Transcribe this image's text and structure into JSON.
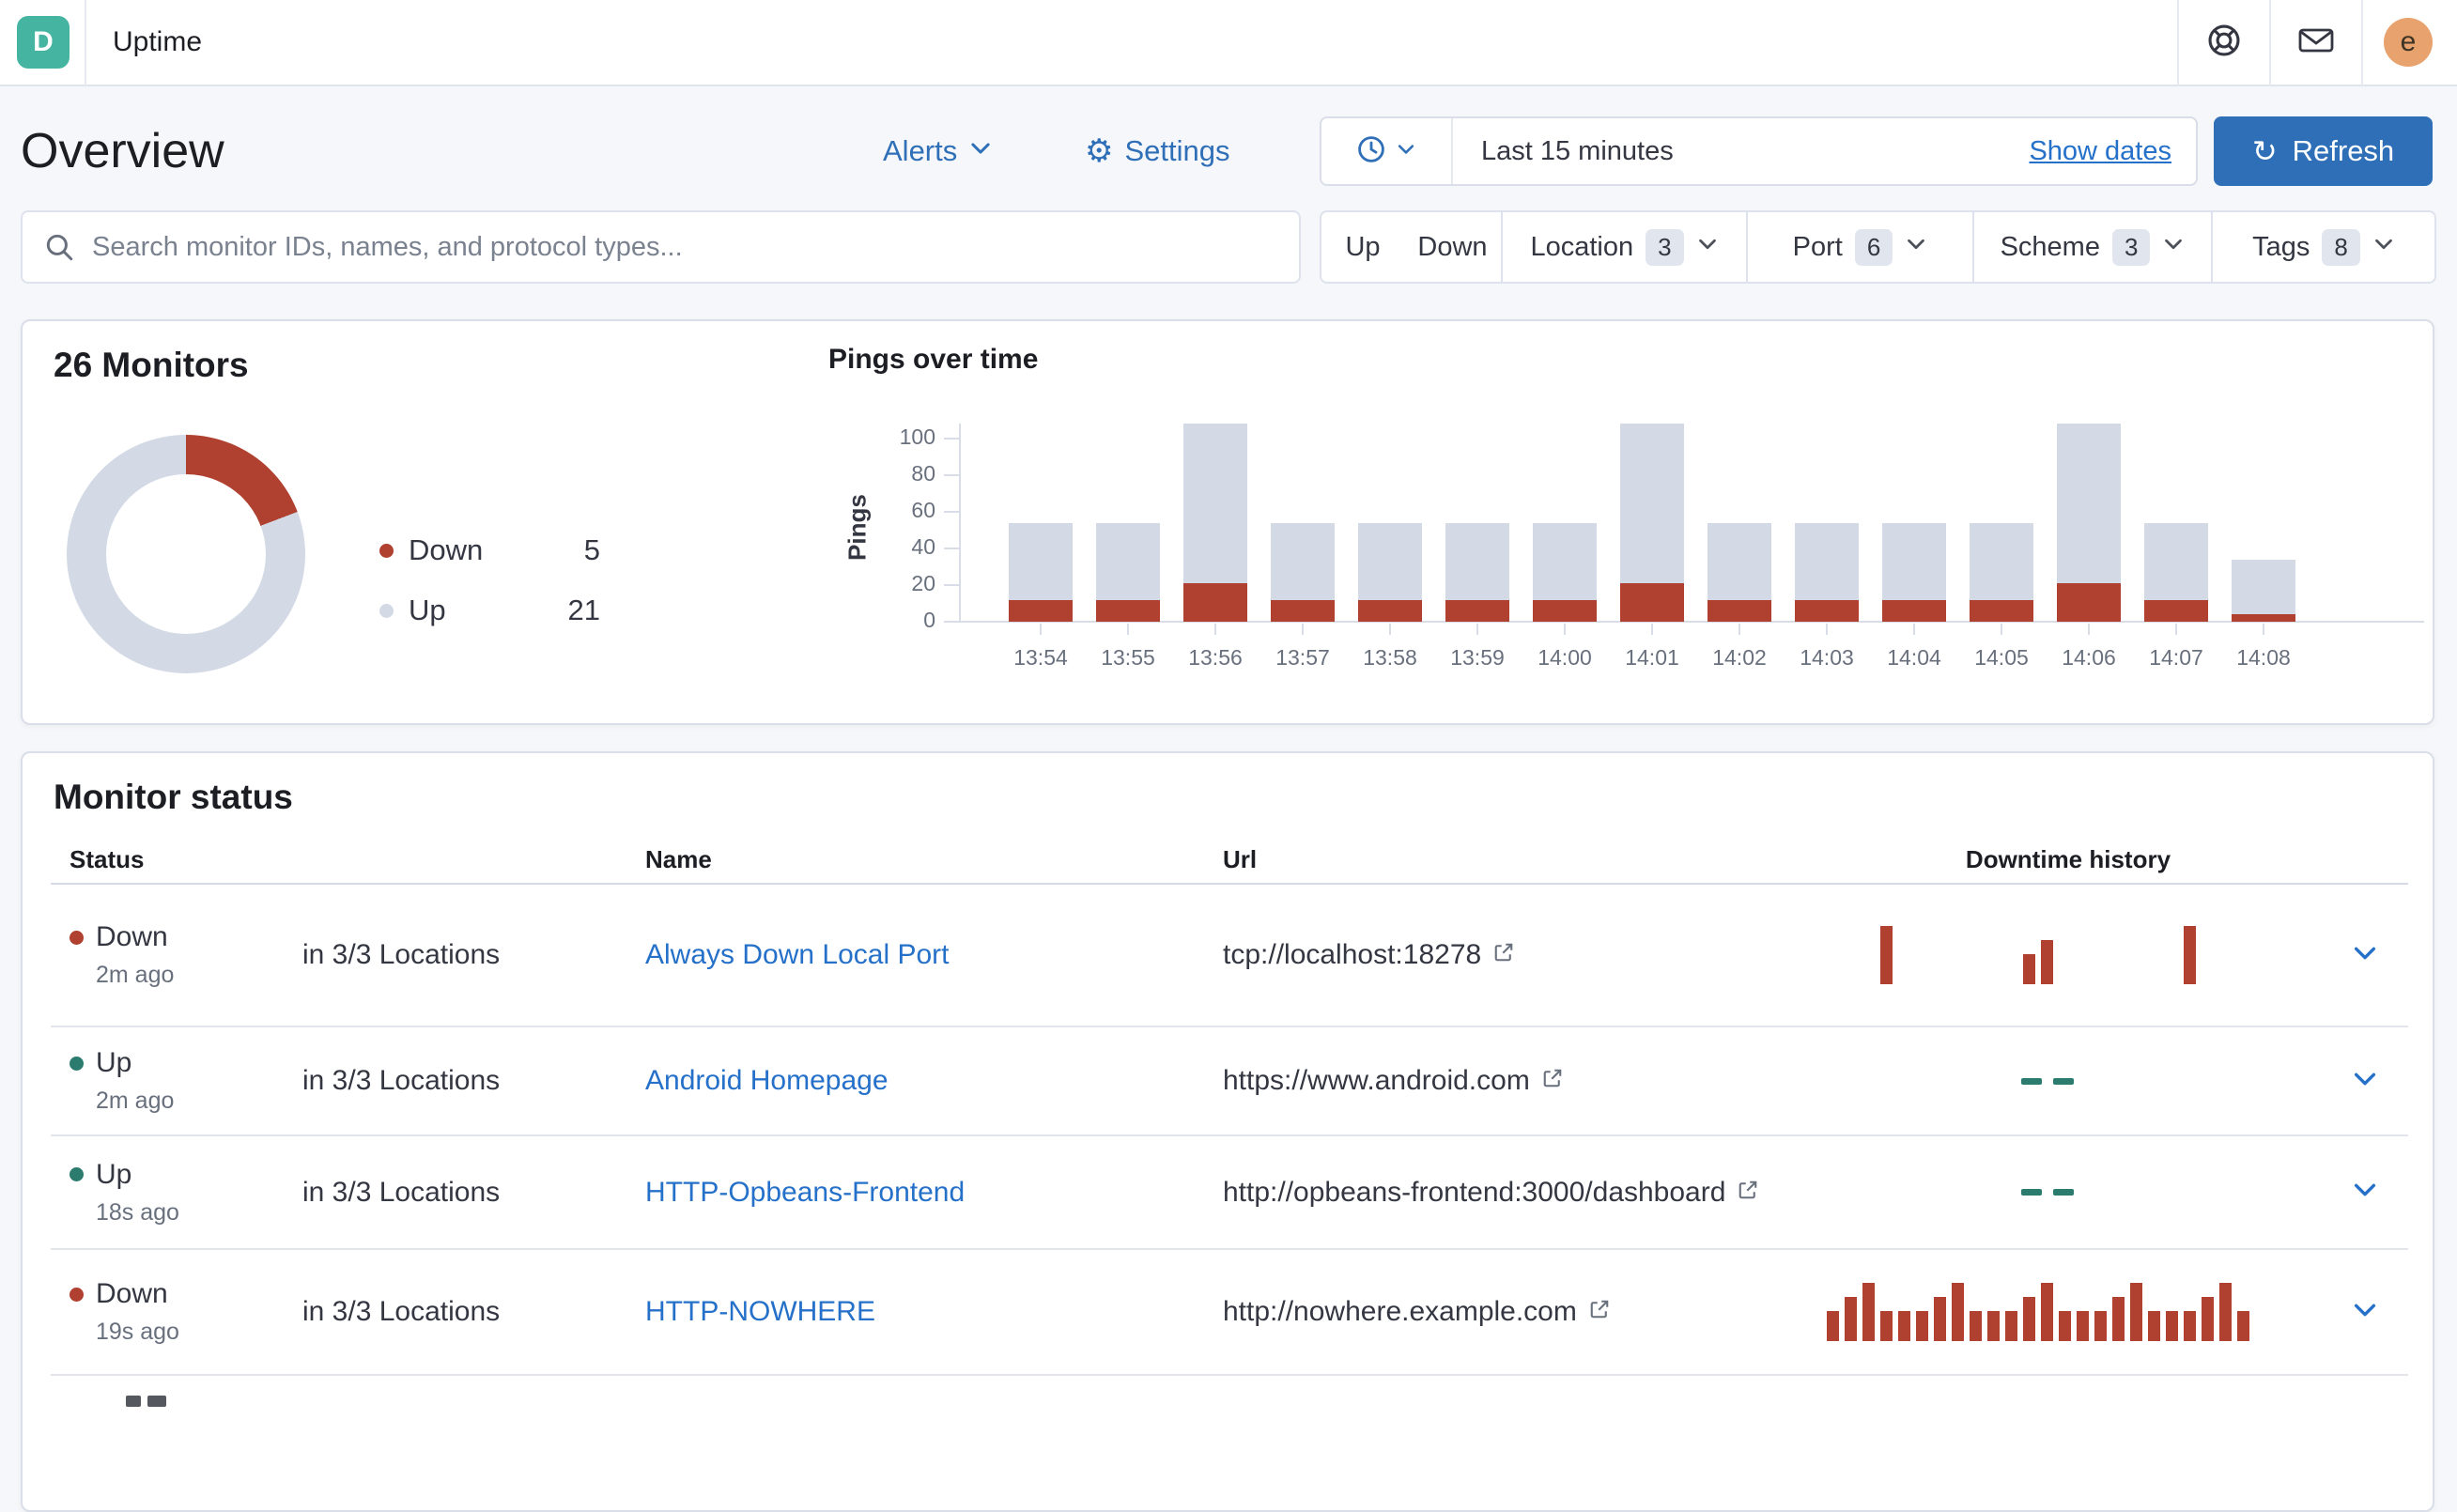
{
  "colors": {
    "primary_blue": "#2E6FB7",
    "link_blue": "#2570C9",
    "danger_red": "#B0402F",
    "up_gray": "#D3DAE6",
    "success_teal": "#2B7C6F",
    "logo_teal": "#45B5A2",
    "avatar_orange": "#E8A26D"
  },
  "glyphs": {
    "gear": "⚙",
    "refresh": "↻"
  },
  "topbar": {
    "logo_letter": "D",
    "app_title": "Uptime",
    "avatar_letter": "e"
  },
  "header": {
    "page_title": "Overview",
    "alerts_label": "Alerts",
    "settings_label": "Settings",
    "time_range": "Last 15 minutes",
    "show_dates_label": "Show dates",
    "refresh_label": "Refresh"
  },
  "search": {
    "placeholder": "Search monitor IDs, names, and protocol types..."
  },
  "filters": {
    "up_label": "Up",
    "down_label": "Down",
    "groups": [
      {
        "label": "Location",
        "count": 3
      },
      {
        "label": "Port",
        "count": 6
      },
      {
        "label": "Scheme",
        "count": 3
      },
      {
        "label": "Tags",
        "count": 8
      }
    ]
  },
  "monitors": {
    "title": "26 Monitors",
    "legend": [
      {
        "label": "Down",
        "value": 5,
        "color_key": "danger_red"
      },
      {
        "label": "Up",
        "value": 21,
        "color_key": "up_gray"
      }
    ]
  },
  "pings_chart": {
    "type": "stacked_bar",
    "title": "Pings over time",
    "ylabel": "Pings",
    "ylim": [
      0,
      100
    ],
    "yticks": [
      100,
      80,
      60,
      40,
      20,
      0
    ],
    "categories": [
      "13:54",
      "13:55",
      "13:56",
      "13:57",
      "13:58",
      "13:59",
      "14:00",
      "14:01",
      "14:02",
      "14:03",
      "14:04",
      "14:05",
      "14:06",
      "14:07",
      "14:08"
    ],
    "series": [
      {
        "name": "Down",
        "values": [
          12,
          12,
          21,
          12,
          12,
          12,
          12,
          21,
          12,
          12,
          12,
          12,
          21,
          12,
          4
        ]
      },
      {
        "name": "Up",
        "values": [
          42,
          42,
          87,
          42,
          42,
          42,
          42,
          87,
          42,
          42,
          42,
          42,
          87,
          42,
          30
        ]
      }
    ]
  },
  "table": {
    "title": "Monitor status",
    "columns": [
      "Status",
      "Name",
      "Url",
      "Downtime history"
    ],
    "empty_history_placeholder": "--",
    "rows": [
      {
        "status": "Down",
        "ago": "2m ago",
        "locations": "in 3/3 Locations",
        "name": "Always Down Local Port",
        "url": "tcp://localhost:18278",
        "history": [
          0,
          0,
          0,
          3,
          0,
          0,
          0,
          0,
          0,
          0,
          0,
          1,
          2,
          0,
          0,
          0,
          0,
          0,
          0,
          0,
          3,
          0,
          0,
          0
        ]
      },
      {
        "status": "Up",
        "ago": "2m ago",
        "locations": "in 3/3 Locations",
        "name": "Android Homepage",
        "url": "https://www.android.com",
        "history": []
      },
      {
        "status": "Up",
        "ago": "18s ago",
        "locations": "in 3/3 Locations",
        "name": "HTTP-Opbeans-Frontend",
        "url": "http://opbeans-frontend:3000/dashboard",
        "history": []
      },
      {
        "status": "Down",
        "ago": "19s ago",
        "locations": "in 3/3 Locations",
        "name": "HTTP-NOWHERE",
        "url": "http://nowhere.example.com",
        "history": [
          1,
          2,
          3,
          1,
          1,
          1,
          2,
          3,
          1,
          1,
          1,
          2,
          3,
          1,
          1,
          1,
          2,
          3,
          1,
          1,
          1,
          2,
          3,
          1
        ]
      }
    ]
  }
}
